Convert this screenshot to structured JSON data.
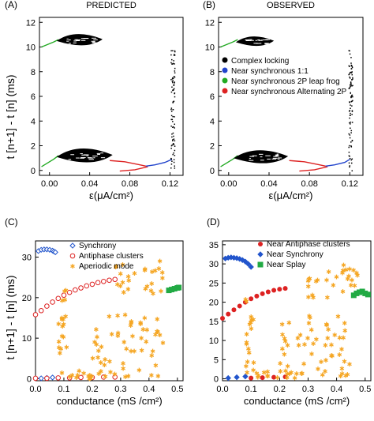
{
  "figure": {
    "ylabel_top": "t [n+1] - t [n]   (ms)",
    "ylabel_bottom": "t [n+1] - t [n]   (ms)"
  },
  "colors": {
    "complex": "#000000",
    "sync11": "#2244cc",
    "leapfrog": "#22aa22",
    "alternating": "#dd2222",
    "synchrony": "#2255cc",
    "antiphase": "#dd2222",
    "aperiodic": "#f5a623",
    "splay": "#22aa44"
  },
  "chart_data": [
    {
      "panel": "(A)",
      "title": "PREDICTED",
      "type": "scatter",
      "xlabel": "ε(μA/cm²)",
      "ylabel": "",
      "xlim": [
        -0.01,
        0.133
      ],
      "ylim": [
        -0.4,
        12.4
      ],
      "xticks": [
        "0.00",
        "0.04",
        "0.08",
        "0.12"
      ],
      "yticks": [
        "0",
        "2",
        "4",
        "6",
        "8",
        "10",
        "12"
      ],
      "series": [
        {
          "kind": "curve",
          "color": "leapfrog",
          "x": [
            -0.008,
            0.004,
            0.009
          ],
          "y": [
            0.3,
            0.9,
            1.2
          ]
        },
        {
          "kind": "curve",
          "color": "leapfrog",
          "x": [
            -0.008,
            0.004,
            0.009
          ],
          "y": [
            10.0,
            10.4,
            10.6
          ]
        },
        {
          "kind": "curve",
          "color": "alternating",
          "x": [
            0.06,
            0.075,
            0.09,
            0.096
          ],
          "y": [
            0.8,
            0.7,
            0.45,
            0.35
          ]
        },
        {
          "kind": "curve",
          "color": "alternating",
          "x": [
            0.07,
            0.085,
            0.098
          ],
          "y": [
            -0.05,
            0.05,
            0.3
          ]
        },
        {
          "kind": "curve",
          "color": "sync11",
          "x": [
            0.096,
            0.105,
            0.115,
            0.122
          ],
          "y": [
            0.35,
            0.45,
            0.65,
            0.9
          ]
        },
        {
          "kind": "blob",
          "color": "complex",
          "cx": 0.035,
          "cy": 1.1,
          "rx": 0.027,
          "ry": 0.75
        },
        {
          "kind": "blob",
          "color": "complex",
          "cx": 0.03,
          "cy": 10.5,
          "rx": 0.022,
          "ry": 0.6
        },
        {
          "kind": "scatter-col",
          "color": "complex",
          "x": 0.122,
          "y_from": 0.2,
          "y_to": 9.8
        }
      ]
    },
    {
      "panel": "(B)",
      "title": "OBSERVED",
      "type": "scatter",
      "xlabel": "ε(μA/cm²)",
      "ylabel": "",
      "xlim": [
        -0.01,
        0.133
      ],
      "ylim": [
        -0.4,
        12.4
      ],
      "xticks": [
        "0.00",
        "0.04",
        "0.08",
        "0.12"
      ],
      "yticks": [
        "0",
        "2",
        "4",
        "6",
        "8",
        "10",
        "12"
      ],
      "legend": {
        "placement": "right",
        "entries": [
          {
            "label": "Complex locking",
            "color": "complex"
          },
          {
            "label": "Near synchronous 1:1",
            "color": "sync11"
          },
          {
            "label": "Near synchronous 2P leap frog",
            "color": "leapfrog"
          },
          {
            "label": "Near synchronous Alternating 2P",
            "color": "alternating"
          }
        ]
      },
      "series": [
        {
          "kind": "curve",
          "color": "leapfrog",
          "x": [
            -0.008,
            0.004,
            0.009
          ],
          "y": [
            0.3,
            0.9,
            1.2
          ]
        },
        {
          "kind": "curve",
          "color": "leapfrog",
          "x": [
            -0.008,
            0.004,
            0.009
          ],
          "y": [
            10.0,
            10.4,
            10.6
          ]
        },
        {
          "kind": "curve",
          "color": "alternating",
          "x": [
            0.06,
            0.075,
            0.09,
            0.096
          ],
          "y": [
            0.8,
            0.7,
            0.45,
            0.35
          ]
        },
        {
          "kind": "curve",
          "color": "alternating",
          "x": [
            0.07,
            0.085,
            0.098
          ],
          "y": [
            -0.05,
            0.05,
            0.3
          ]
        },
        {
          "kind": "curve",
          "color": "sync11",
          "x": [
            0.096,
            0.105,
            0.115,
            0.12
          ],
          "y": [
            0.35,
            0.45,
            0.65,
            0.9
          ]
        },
        {
          "kind": "blob",
          "color": "complex",
          "cx": 0.032,
          "cy": 1.0,
          "rx": 0.026,
          "ry": 0.7
        },
        {
          "kind": "blob",
          "color": "complex",
          "cx": 0.026,
          "cy": 10.4,
          "rx": 0.018,
          "ry": 0.5
        },
        {
          "kind": "scatter-col",
          "color": "complex",
          "x": 0.12,
          "y_from": 0.0,
          "y_to": 9.8
        }
      ]
    },
    {
      "panel": "(C)",
      "type": "scatter",
      "xlabel": "conductance  (mS /cm²)",
      "ylabel": "",
      "xlim": [
        0.0,
        0.52
      ],
      "ylim": [
        -0.5,
        34
      ],
      "xticks": [
        "0.0",
        "0.1",
        "0.2",
        "0.3",
        "0.4",
        "0.5"
      ],
      "yticks": [
        "0",
        "10",
        "20",
        "30"
      ],
      "legend": {
        "placement": "top-left",
        "entries": [
          {
            "label": "Synchrony",
            "color": "synchrony",
            "marker": "diamond-open"
          },
          {
            "label": "Antiphase clusters",
            "color": "antiphase",
            "marker": "circle-open"
          },
          {
            "label": "Aperiodic mode",
            "color": "aperiodic",
            "marker": "star"
          }
        ]
      },
      "series": [
        {
          "name": "Synchrony",
          "color": "synchrony",
          "marker": "diamond-open",
          "x": [
            0.01,
            0.02,
            0.03,
            0.04,
            0.05,
            0.06,
            0.065,
            0.07,
            0.02,
            0.04,
            0.06
          ],
          "y": [
            31.5,
            31.8,
            31.9,
            31.9,
            31.8,
            31.6,
            31.4,
            31.2,
            0.1,
            0.2,
            0.3
          ]
        },
        {
          "name": "Antiphase clusters",
          "color": "antiphase",
          "marker": "circle-open",
          "x": [
            0.0,
            0.02,
            0.04,
            0.06,
            0.08,
            0.1,
            0.12,
            0.14,
            0.16,
            0.18,
            0.2,
            0.22,
            0.24,
            0.26,
            0.28,
            0.0,
            0.04,
            0.08,
            0.12,
            0.16,
            0.2,
            0.24,
            0.28
          ],
          "y": [
            15.8,
            16.8,
            17.9,
            18.9,
            19.8,
            20.6,
            21.3,
            21.9,
            22.4,
            22.9,
            23.3,
            23.7,
            24.0,
            24.3,
            24.5,
            0.1,
            0.1,
            0.2,
            0.2,
            0.3,
            0.3,
            0.4,
            0.4
          ]
        },
        {
          "name": "Aperiodic mode",
          "color": "aperiodic",
          "marker": "star",
          "cluster": true,
          "bands": [
            {
              "x_from": 0.08,
              "x_to": 0.11,
              "y_from": 1,
              "y_to": 23
            },
            {
              "x_from": 0.28,
              "x_to": 0.45,
              "y_from": 21,
              "y_to": 29
            },
            {
              "x_from": 0.2,
              "x_to": 0.45,
              "y_from": 0.5,
              "y_to": 16
            },
            {
              "x_from": 0.12,
              "x_to": 0.3,
              "y_from": 0,
              "y_to": 2
            }
          ]
        },
        {
          "name": "Splay",
          "color": "splay",
          "marker": "square",
          "x": [
            0.47,
            0.48,
            0.49,
            0.5,
            0.505
          ],
          "y": [
            21.8,
            22.0,
            22.2,
            22.4,
            22.5
          ]
        }
      ]
    },
    {
      "panel": "(D)",
      "type": "scatter",
      "xlabel": "conductance  (mS /cm²)",
      "ylabel": "",
      "xlim": [
        0.0,
        0.52
      ],
      "ylim": [
        -0.5,
        36
      ],
      "xticks": [
        "0.0",
        "0.1",
        "0.2",
        "0.3",
        "0.4",
        "0.5"
      ],
      "yticks": [
        "0",
        "5",
        "10",
        "15",
        "20",
        "25",
        "30",
        "35"
      ],
      "legend": {
        "placement": "top-right",
        "entries": [
          {
            "label": "Near Antiphase clusters",
            "color": "antiphase",
            "marker": "circle"
          },
          {
            "label": "Near  Synchrony",
            "color": "synchrony",
            "marker": "diamond"
          },
          {
            "label": "Near Splay",
            "color": "splay",
            "marker": "square"
          }
        ]
      },
      "series": [
        {
          "name": "Near  Synchrony",
          "color": "synchrony",
          "marker": "diamond",
          "x": [
            0.01,
            0.02,
            0.03,
            0.04,
            0.05,
            0.06,
            0.07,
            0.08,
            0.09,
            0.1,
            0.02,
            0.05,
            0.08
          ],
          "y": [
            31.4,
            31.6,
            31.7,
            31.6,
            31.5,
            31.3,
            31.0,
            30.6,
            30.0,
            29.2,
            0.2,
            0.4,
            0.6
          ]
        },
        {
          "name": "Near Antiphase clusters",
          "color": "antiphase",
          "marker": "circle",
          "x": [
            0.0,
            0.02,
            0.04,
            0.06,
            0.08,
            0.1,
            0.12,
            0.14,
            0.16,
            0.18,
            0.2,
            0.22,
            0.1,
            0.14,
            0.18,
            0.22
          ],
          "y": [
            15.8,
            16.9,
            18.0,
            19.0,
            20.0,
            20.9,
            21.6,
            22.2,
            22.7,
            23.1,
            23.4,
            23.6,
            0.2,
            0.3,
            0.4,
            0.5
          ]
        },
        {
          "name": "Aperiodic",
          "color": "aperiodic",
          "marker": "star",
          "cluster": true,
          "bands": [
            {
              "x_from": 0.08,
              "x_to": 0.11,
              "y_from": 1,
              "y_to": 22
            },
            {
              "x_from": 0.3,
              "x_to": 0.48,
              "y_from": 21,
              "y_to": 30
            },
            {
              "x_from": 0.2,
              "x_to": 0.45,
              "y_from": 0.5,
              "y_to": 17
            },
            {
              "x_from": 0.12,
              "x_to": 0.3,
              "y_from": 0,
              "y_to": 2
            }
          ]
        },
        {
          "name": "Near Splay",
          "color": "splay",
          "marker": "square",
          "x": [
            0.46,
            0.47,
            0.48,
            0.49,
            0.5,
            0.51
          ],
          "y": [
            21.8,
            22.3,
            22.6,
            22.8,
            22.3,
            22.0
          ]
        }
      ]
    }
  ]
}
